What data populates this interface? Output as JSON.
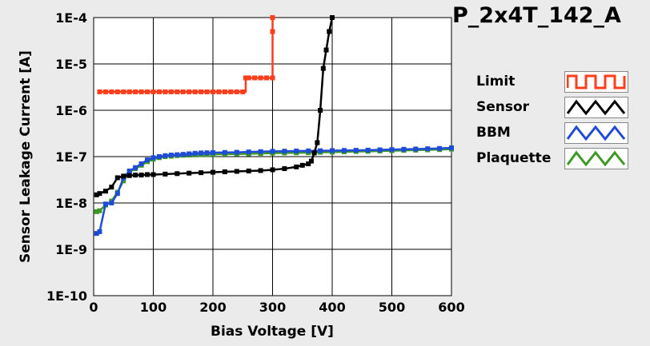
{
  "title": "P_2x4T_142_A",
  "chart_data": {
    "type": "line",
    "title": "P_2x4T_142_A",
    "xlabel": "Bias Voltage [V]",
    "ylabel": "Sensor Leakage Current [A]",
    "xlim": [
      0,
      600
    ],
    "ylim": [
      1e-10,
      0.0001
    ],
    "yscale": "log",
    "grid": true,
    "legend_position": "right",
    "x_ticks": [
      0,
      100,
      200,
      300,
      400,
      500,
      600
    ],
    "x_tick_labels": [
      "0",
      "100",
      "200",
      "300",
      "400",
      "500",
      "600"
    ],
    "y_ticks": [
      1e-10,
      1e-09,
      1e-08,
      1e-07,
      1e-06,
      1e-05,
      0.0001
    ],
    "y_tick_labels": [
      "1E-10",
      "1E-9",
      "1E-8",
      "1E-7",
      "1E-6",
      "1E-5",
      "1E-4"
    ],
    "series": [
      {
        "name": "Limit",
        "color": "#ff3d1a",
        "x": [
          10,
          20,
          30,
          40,
          50,
          60,
          70,
          80,
          90,
          100,
          110,
          120,
          130,
          140,
          150,
          160,
          170,
          180,
          190,
          200,
          210,
          220,
          230,
          240,
          250,
          255,
          260,
          270,
          280,
          290,
          300,
          300,
          300
        ],
        "y": [
          2.5e-06,
          2.5e-06,
          2.5e-06,
          2.5e-06,
          2.5e-06,
          2.5e-06,
          2.5e-06,
          2.5e-06,
          2.5e-06,
          2.5e-06,
          2.5e-06,
          2.5e-06,
          2.5e-06,
          2.5e-06,
          2.5e-06,
          2.5e-06,
          2.5e-06,
          2.5e-06,
          2.5e-06,
          2.5e-06,
          2.5e-06,
          2.5e-06,
          2.5e-06,
          2.5e-06,
          2.5e-06,
          5e-06,
          5e-06,
          5e-06,
          5e-06,
          5e-06,
          5e-06,
          5e-05,
          0.0001
        ]
      },
      {
        "name": "Sensor",
        "color": "#000000",
        "x": [
          5,
          10,
          20,
          30,
          40,
          50,
          60,
          70,
          80,
          90,
          100,
          120,
          140,
          160,
          180,
          200,
          220,
          240,
          260,
          280,
          300,
          320,
          340,
          350,
          360,
          365,
          370,
          375,
          380,
          385,
          390,
          395,
          400
        ],
        "y": [
          1.5e-08,
          1.6e-08,
          1.8e-08,
          2.2e-08,
          3.5e-08,
          3.8e-08,
          3.9e-08,
          4e-08,
          4e-08,
          4.1e-08,
          4.1e-08,
          4.2e-08,
          4.3e-08,
          4.4e-08,
          4.5e-08,
          4.6e-08,
          4.7e-08,
          4.8e-08,
          4.9e-08,
          5e-08,
          5.2e-08,
          5.5e-08,
          6e-08,
          6.5e-08,
          7e-08,
          8e-08,
          1.2e-07,
          2e-07,
          1e-06,
          8e-06,
          2e-05,
          5e-05,
          0.0001
        ]
      },
      {
        "name": "BBM",
        "color": "#1f4bd6",
        "x": [
          5,
          10,
          20,
          30,
          40,
          50,
          60,
          70,
          80,
          90,
          100,
          110,
          120,
          130,
          140,
          150,
          160,
          170,
          180,
          190,
          200,
          220,
          240,
          260,
          280,
          300,
          320,
          340,
          360,
          380,
          400,
          420,
          440,
          460,
          480,
          500,
          520,
          540,
          560,
          580,
          600
        ],
        "y": [
          2.2e-09,
          2.4e-09,
          9.5e-09,
          1e-08,
          1.6e-08,
          3.5e-08,
          4.9e-08,
          5.8e-08,
          7e-08,
          8.5e-08,
          9.5e-08,
          1e-07,
          1.05e-07,
          1.08e-07,
          1.1e-07,
          1.12e-07,
          1.15e-07,
          1.18e-07,
          1.2e-07,
          1.21e-07,
          1.22e-07,
          1.23e-07,
          1.24e-07,
          1.26e-07,
          1.28e-07,
          1.3e-07,
          1.31e-07,
          1.32e-07,
          1.33e-07,
          1.34e-07,
          1.35e-07,
          1.36e-07,
          1.37e-07,
          1.38e-07,
          1.4e-07,
          1.42e-07,
          1.44e-07,
          1.46e-07,
          1.48e-07,
          1.5e-07,
          1.55e-07
        ]
      },
      {
        "name": "Plaquette",
        "color": "#3c9a24",
        "x": [
          5,
          10,
          20,
          30,
          40,
          50,
          60,
          70,
          80,
          90,
          100,
          110,
          120,
          130,
          140,
          150,
          160,
          170,
          180,
          190,
          200,
          220,
          240,
          260,
          280,
          300,
          320,
          340,
          360,
          380,
          400,
          420,
          440,
          460,
          480,
          500,
          520,
          540,
          560,
          580,
          600
        ],
        "y": [
          6.5e-09,
          6.8e-09,
          9e-09,
          1.1e-08,
          1.7e-08,
          3e-08,
          4.7e-08,
          5.5e-08,
          6.5e-08,
          7.8e-08,
          8.8e-08,
          9.5e-08,
          1e-07,
          1.02e-07,
          1.05e-07,
          1.07e-07,
          1.08e-07,
          1.09e-07,
          1.1e-07,
          1.11e-07,
          1.12e-07,
          1.13e-07,
          1.14e-07,
          1.15e-07,
          1.17e-07,
          1.19e-07,
          1.2e-07,
          1.21e-07,
          1.22e-07,
          1.24e-07,
          1.25e-07,
          1.27e-07,
          1.29e-07,
          1.3e-07,
          1.32e-07,
          1.34e-07,
          1.36e-07,
          1.38e-07,
          1.4e-07,
          1.42e-07,
          1.45e-07
        ]
      }
    ]
  },
  "legend": [
    {
      "label": "Limit",
      "color": "#ff3d1a"
    },
    {
      "label": "Sensor",
      "color": "#000000"
    },
    {
      "label": "BBM",
      "color": "#1f4bd6"
    },
    {
      "label": "Plaquette",
      "color": "#3c9a24"
    }
  ]
}
